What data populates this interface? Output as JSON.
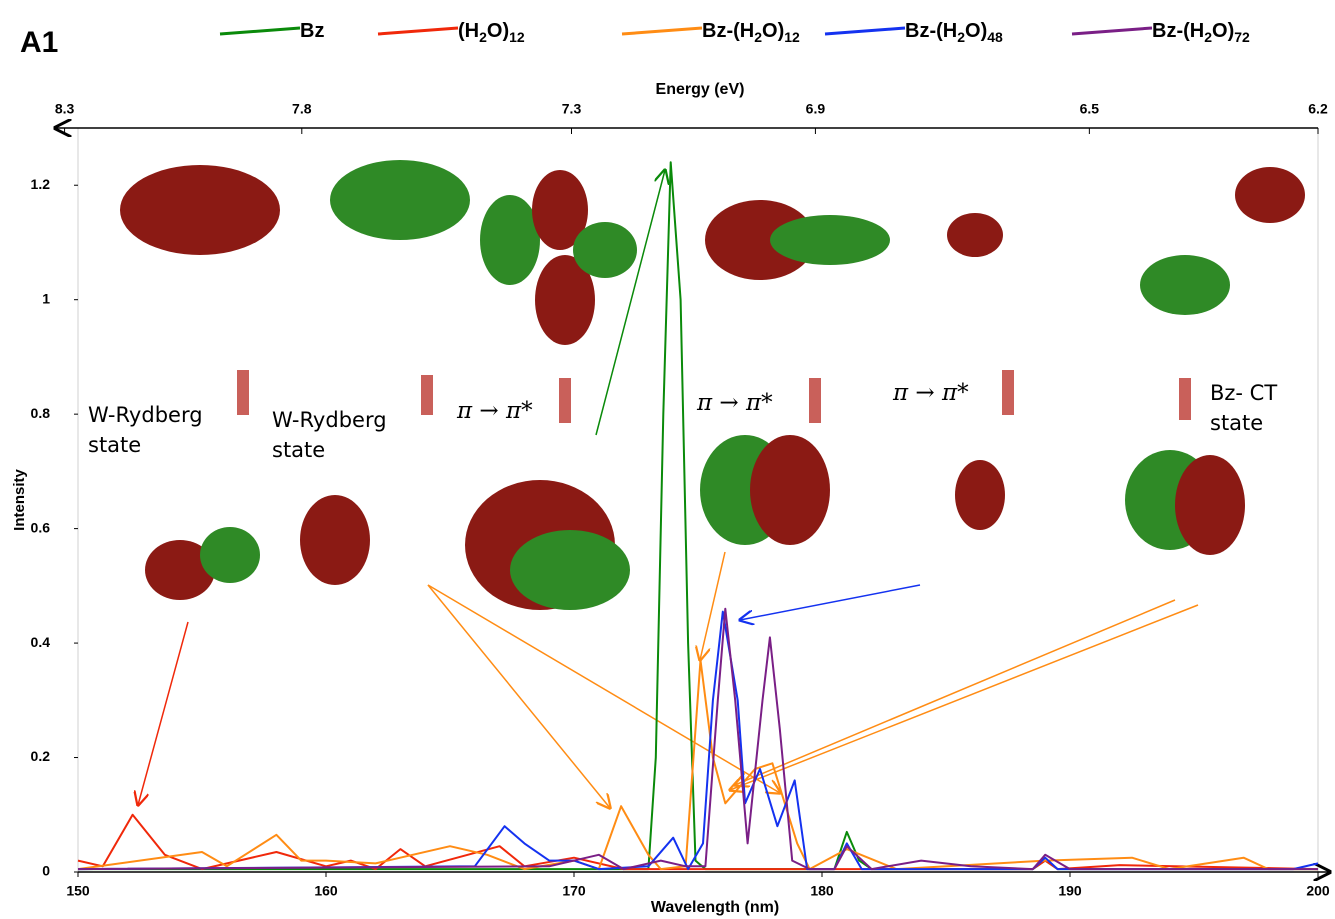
{
  "chart_data": {
    "type": "line",
    "panel_label": "A1",
    "xlabel": "Wavelength (nm)",
    "ylabel": "Intensity",
    "x2label": "Energy (eV)",
    "xlim": [
      150,
      200
    ],
    "xticks": [
      150,
      160,
      170,
      180,
      190,
      200
    ],
    "ylim": [
      0,
      1.3
    ],
    "yticks": [
      0,
      0.2,
      0.4,
      0.6,
      0.8,
      1,
      1.2
    ],
    "x2lim": [
      8.27,
      6.2
    ],
    "x2scale": "reciprocal",
    "x2ticks": [
      8.3,
      7.8,
      7.3,
      6.9,
      6.5,
      6.2
    ],
    "legend": "top",
    "annotations": [
      "W-Rydberg state",
      "W-Rydberg state",
      "π → π*",
      "π → π*",
      "π → π*",
      "Bz- CT state"
    ],
    "series": [
      {
        "name": "Bz",
        "color": "#0a8a0a",
        "x": [
          150,
          160,
          170,
          173,
          173.3,
          173.6,
          173.9,
          174.3,
          174.6,
          174.9,
          175.3,
          180.5,
          181,
          181.5,
          182,
          188.5,
          189,
          189.5,
          200
        ],
        "values": [
          0.005,
          0.005,
          0.005,
          0.005,
          0.2,
          0.8,
          1.24,
          1.0,
          0.4,
          0.02,
          0.005,
          0.005,
          0.07,
          0.02,
          0.005,
          0.005,
          0.02,
          0.005,
          0.005
        ]
      },
      {
        "name": "(H2O)12",
        "color": "#f0280a",
        "x": [
          150,
          151,
          152.2,
          153.5,
          155,
          158,
          160,
          161,
          162,
          163,
          164,
          167,
          168,
          170,
          172,
          188.5,
          189,
          189.5,
          192,
          200
        ],
        "values": [
          0.02,
          0.01,
          0.1,
          0.03,
          0.005,
          0.035,
          0.01,
          0.02,
          0.005,
          0.04,
          0.01,
          0.045,
          0.01,
          0.025,
          0.005,
          0.005,
          0.02,
          0.005,
          0.012,
          0.005
        ]
      },
      {
        "name": "Bz-(H2O)12",
        "color": "#ff8c14",
        "x": [
          150,
          155,
          156,
          158,
          159,
          160,
          162,
          165,
          166.5,
          168,
          170,
          171,
          171.9,
          173,
          173.5,
          174.5,
          175.1,
          175.6,
          176.1,
          177.3,
          178,
          179,
          179.5,
          181,
          183,
          189,
          192.5,
          194,
          197,
          198,
          200
        ],
        "values": [
          0.005,
          0.035,
          0.01,
          0.065,
          0.02,
          0.02,
          0.015,
          0.045,
          0.03,
          0.005,
          0.02,
          0.005,
          0.115,
          0.03,
          0.005,
          0.01,
          0.37,
          0.2,
          0.12,
          0.18,
          0.19,
          0.05,
          0.005,
          0.04,
          0.005,
          0.02,
          0.025,
          0.005,
          0.025,
          0.005,
          0.005
        ]
      },
      {
        "name": "Bz-(H2O)48",
        "color": "#1432f0",
        "x": [
          150,
          166,
          167.2,
          168,
          169,
          170,
          171,
          173,
          174,
          174.6,
          175.2,
          175.6,
          176,
          176.6,
          176.9,
          177.5,
          178.2,
          178.9,
          179.4,
          180.5,
          181,
          181.6,
          188.5,
          189,
          189.5,
          199,
          200
        ],
        "values": [
          0.005,
          0.01,
          0.08,
          0.05,
          0.02,
          0.02,
          0.005,
          0.01,
          0.06,
          0.005,
          0.05,
          0.3,
          0.455,
          0.3,
          0.12,
          0.18,
          0.08,
          0.16,
          0.005,
          0.005,
          0.05,
          0.005,
          0.005,
          0.025,
          0.005,
          0.005,
          0.015
        ]
      },
      {
        "name": "Bz-(H2O)72",
        "color": "#7a1f86",
        "x": [
          150,
          169,
          171,
          172,
          173.5,
          174.5,
          175.3,
          175.8,
          176.1,
          176.5,
          177,
          177.6,
          177.9,
          178.3,
          178.8,
          179.5,
          180.5,
          181,
          182,
          184,
          186,
          188.5,
          189,
          190,
          200
        ],
        "values": [
          0.005,
          0.01,
          0.03,
          0.005,
          0.02,
          0.01,
          0.01,
          0.3,
          0.46,
          0.3,
          0.05,
          0.3,
          0.41,
          0.25,
          0.02,
          0.005,
          0.005,
          0.045,
          0.005,
          0.02,
          0.01,
          0.005,
          0.03,
          0.005,
          0.005
        ]
      }
    ]
  }
}
